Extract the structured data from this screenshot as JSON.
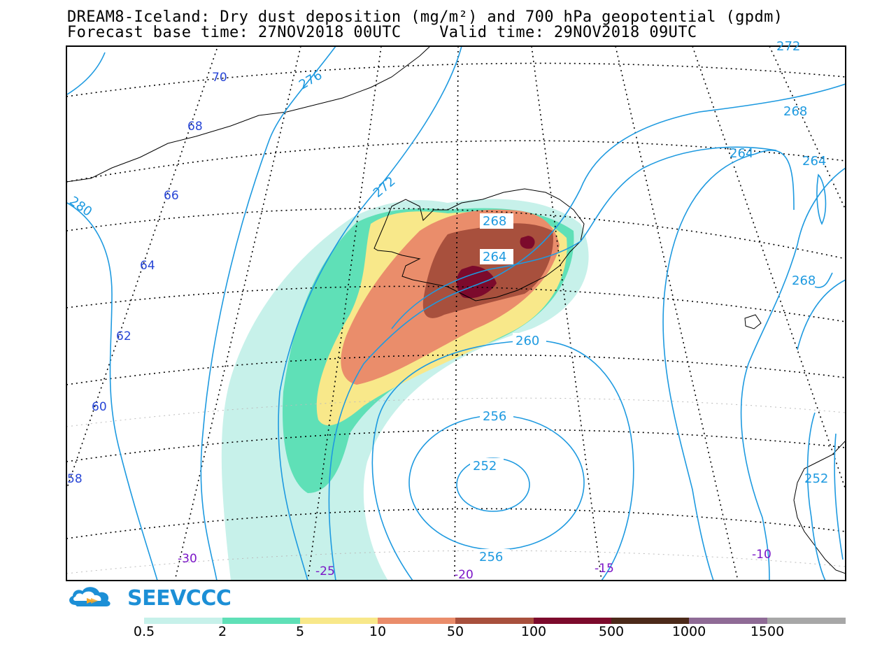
{
  "title": {
    "line1": "DREAM8-Iceland: Dry dust deposition (mg/m²) and 700 hPa geopotential (gpdm)",
    "line2": "Forecast base time: 27NOV2018 00UTC    Valid time: 29NOV2018 09UTC"
  },
  "brand": {
    "name": "SEEVCCC"
  },
  "latitude_labels": [
    "70",
    "68",
    "66",
    "64",
    "62",
    "60",
    "58"
  ],
  "longitude_labels": [
    "-30",
    "-25",
    "-20",
    "-15",
    "-10"
  ],
  "contour_labels": [
    "276",
    "272",
    "272",
    "280",
    "268",
    "264",
    "268",
    "264",
    "268",
    "264",
    "268",
    "260",
    "256",
    "252",
    "256",
    "252"
  ],
  "legend": {
    "labels": [
      "0.5",
      "2",
      "5",
      "10",
      "50",
      "100",
      "500",
      "1000",
      "1500"
    ],
    "colors": [
      "#c7f1ea",
      "#5fe0b7",
      "#f8e88a",
      "#ea8d6b",
      "#a8503d",
      "#7c0a2c",
      "#4c2a1a",
      "#8f6b96",
      "#a7a7a7"
    ]
  },
  "colors": {
    "contour": "#1e9ae0",
    "lat_label": "#2846d6",
    "lon_label": "#7b16c7",
    "brand": "#1c8fd6"
  }
}
